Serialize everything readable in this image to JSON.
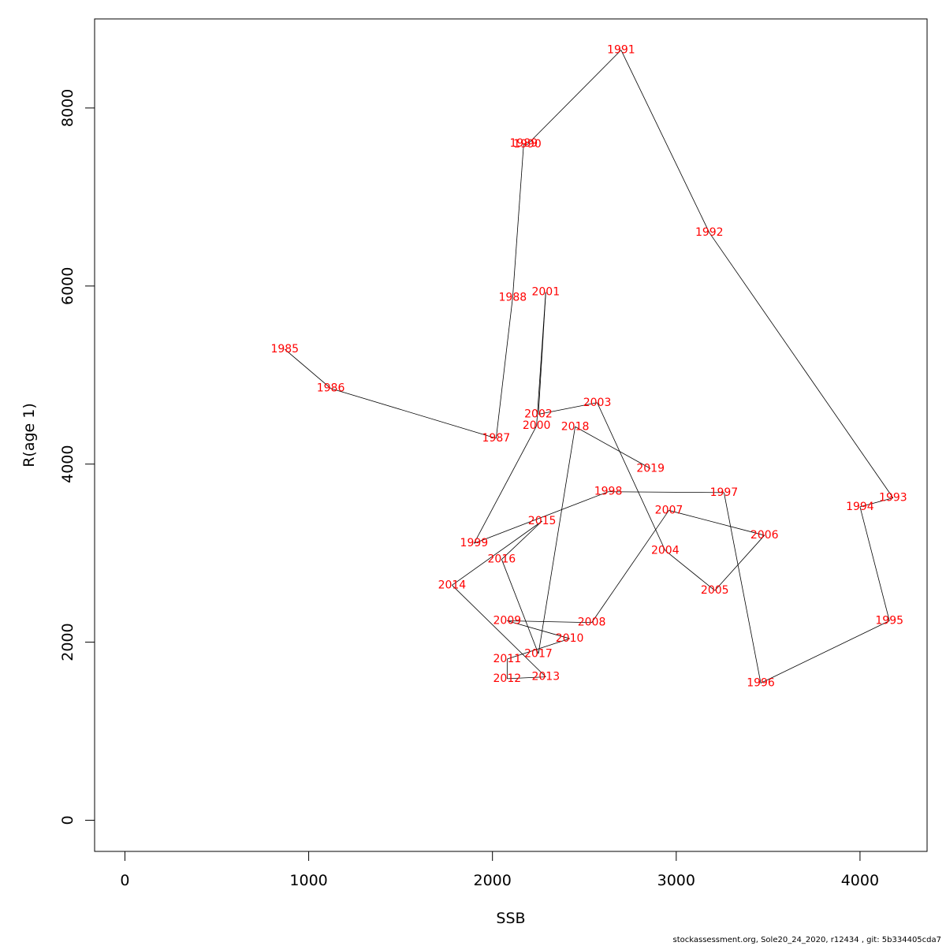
{
  "chart_data": {
    "type": "line",
    "title": "",
    "xlabel": "SSB",
    "ylabel": "R(age 1)",
    "xlim": [
      -165,
      4365
    ],
    "ylim": [
      -350,
      9000
    ],
    "xticks": [
      0,
      1000,
      2000,
      3000,
      4000
    ],
    "yticks": [
      0,
      2000,
      4000,
      6000,
      8000
    ],
    "xtick_labels": [
      "0",
      "1000",
      "2000",
      "3000",
      "4000"
    ],
    "ytick_labels": [
      "0",
      "2000",
      "4000",
      "6000",
      "8000"
    ],
    "grid": false,
    "line_color": "#000000",
    "label_color": "#ff0000",
    "points": [
      {
        "year": "1985",
        "x": 870,
        "y": 5290
      },
      {
        "year": "1986",
        "x": 1120,
        "y": 4850
      },
      {
        "year": "1987",
        "x": 2020,
        "y": 4290
      },
      {
        "year": "1988",
        "x": 2110,
        "y": 5870
      },
      {
        "year": "1989",
        "x": 2170,
        "y": 7600
      },
      {
        "year": "1990",
        "x": 2190,
        "y": 7590
      },
      {
        "year": "1991",
        "x": 2700,
        "y": 8650
      },
      {
        "year": "1992",
        "x": 3180,
        "y": 6600
      },
      {
        "year": "1993",
        "x": 4180,
        "y": 3620
      },
      {
        "year": "1994",
        "x": 4000,
        "y": 3520
      },
      {
        "year": "1995",
        "x": 4160,
        "y": 2240
      },
      {
        "year": "1996",
        "x": 3460,
        "y": 1540
      },
      {
        "year": "1997",
        "x": 3260,
        "y": 3680
      },
      {
        "year": "1998",
        "x": 2630,
        "y": 3690
      },
      {
        "year": "1999",
        "x": 1900,
        "y": 3110
      },
      {
        "year": "2000",
        "x": 2240,
        "y": 4430
      },
      {
        "year": "2001",
        "x": 2290,
        "y": 5930
      },
      {
        "year": "2002",
        "x": 2250,
        "y": 4560
      },
      {
        "year": "2003",
        "x": 2570,
        "y": 4690
      },
      {
        "year": "2004",
        "x": 2940,
        "y": 3030
      },
      {
        "year": "2005",
        "x": 3210,
        "y": 2580
      },
      {
        "year": "2006",
        "x": 3480,
        "y": 3200
      },
      {
        "year": "2007",
        "x": 2960,
        "y": 3480
      },
      {
        "year": "2008",
        "x": 2540,
        "y": 2220
      },
      {
        "year": "2009",
        "x": 2080,
        "y": 2240
      },
      {
        "year": "2010",
        "x": 2420,
        "y": 2040
      },
      {
        "year": "2011",
        "x": 2080,
        "y": 1810
      },
      {
        "year": "2012",
        "x": 2080,
        "y": 1590
      },
      {
        "year": "2013",
        "x": 2290,
        "y": 1610
      },
      {
        "year": "2014",
        "x": 1780,
        "y": 2640
      },
      {
        "year": "2015",
        "x": 2270,
        "y": 3360
      },
      {
        "year": "2016",
        "x": 2050,
        "y": 2930
      },
      {
        "year": "2017",
        "x": 2250,
        "y": 1870
      },
      {
        "year": "2018",
        "x": 2450,
        "y": 4420
      },
      {
        "year": "2019",
        "x": 2860,
        "y": 3950
      }
    ]
  },
  "footer": "stockassessment.org, Sole20_24_2020, r12434 , git: 5b334405cda7"
}
